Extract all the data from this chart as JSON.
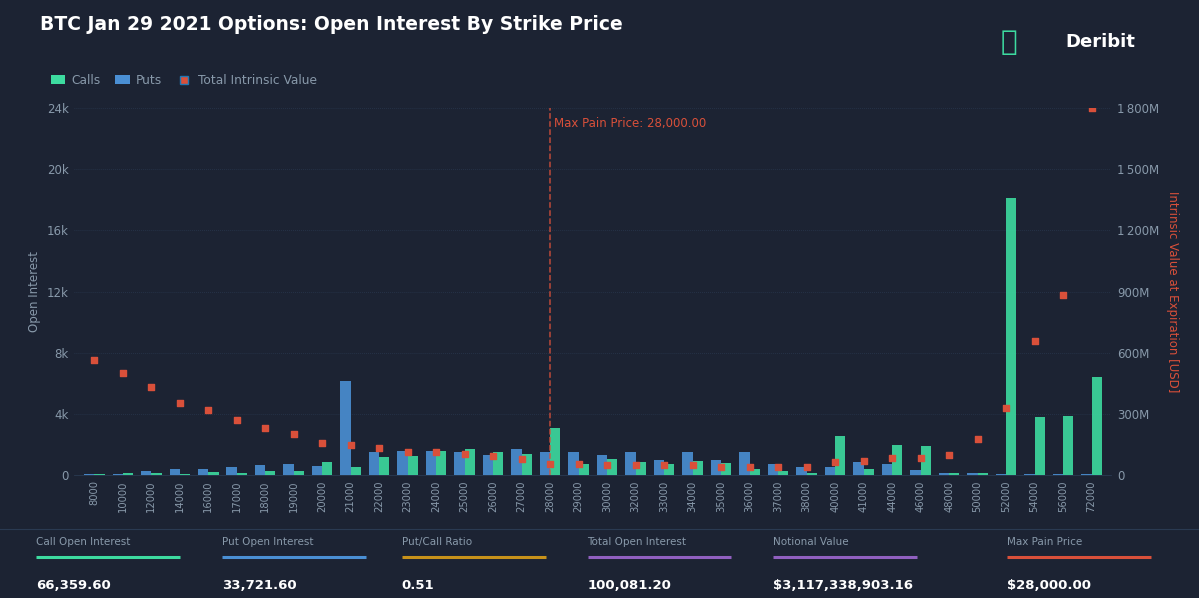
{
  "title": "BTC Jan 29 2021 Options: Open Interest By Strike Price",
  "bg_color": "#1c2333",
  "grid_color": "#2a3a52",
  "text_color": "#8899aa",
  "calls_color": "#3ddba0",
  "puts_color": "#4a8fd4",
  "intrinsic_color": "#d9503a",
  "max_pain_color": "#d9503a",
  "max_pain_price": 28000,
  "strikes": [
    8000,
    10000,
    12000,
    14000,
    16000,
    17000,
    18000,
    19000,
    20000,
    21000,
    22000,
    23000,
    24000,
    25000,
    26000,
    27000,
    28000,
    29000,
    30000,
    32000,
    33000,
    34000,
    35000,
    36000,
    37000,
    38000,
    40000,
    41000,
    44000,
    46000,
    48000,
    50000,
    52000,
    54000,
    56000,
    72000
  ],
  "calls": [
    100,
    150,
    130,
    120,
    200,
    180,
    280,
    280,
    900,
    550,
    1200,
    1250,
    1600,
    1750,
    1550,
    1400,
    3100,
    750,
    1100,
    850,
    720,
    950,
    820,
    450,
    260,
    180,
    2600,
    420,
    2000,
    1900,
    180,
    180,
    18100,
    3800,
    3900,
    6400
  ],
  "puts": [
    80,
    120,
    320,
    420,
    400,
    520,
    680,
    720,
    600,
    6150,
    1500,
    1600,
    1600,
    1500,
    1300,
    1700,
    1550,
    1500,
    1350,
    1500,
    1000,
    1500,
    1000,
    1500,
    750,
    550,
    550,
    850,
    750,
    380,
    180,
    180,
    80,
    80,
    80,
    80
  ],
  "intrinsic_left_scale": [
    7500,
    6700,
    5800,
    4700,
    4300,
    3600,
    3100,
    2700,
    2100,
    2000,
    1800,
    1550,
    1550,
    1400,
    1250,
    1050,
    750,
    750,
    670,
    670,
    670,
    670,
    570,
    570,
    570,
    570,
    870,
    970,
    1150,
    1150,
    1350,
    2400,
    4400,
    8800,
    11800,
    24000
  ],
  "ylim_left": [
    0,
    24000
  ],
  "ylim_right": [
    0,
    1800000000
  ],
  "yticks_left": [
    0,
    4000,
    8000,
    12000,
    16000,
    20000,
    24000
  ],
  "ytick_labels_left": [
    "0",
    "4k",
    "8k",
    "12k",
    "16k",
    "20k",
    "24k"
  ],
  "ytick_labels_right": [
    "0",
    "300M",
    "600M",
    "900M",
    "1 200M",
    "1 500M",
    "1 800M"
  ],
  "ylabel_left": "Open Interest",
  "ylabel_right": "Intrinsic Value at Expiration [USD]",
  "stats_labels": [
    "Call Open Interest",
    "Put Open Interest",
    "Put/Call Ratio",
    "Total Open Interest",
    "Notional Value",
    "Max Pain Price"
  ],
  "stats_values": [
    "66,359.60",
    "33,721.60",
    "0.51",
    "100,081.20",
    "$3,117,338,903.16",
    "$28,000.00"
  ],
  "stats_colors": [
    "#3ddba0",
    "#4a8fd4",
    "#c8921a",
    "#9060c0",
    "#9060c0",
    "#d9503a"
  ],
  "deribit_color": "#3ddba0"
}
